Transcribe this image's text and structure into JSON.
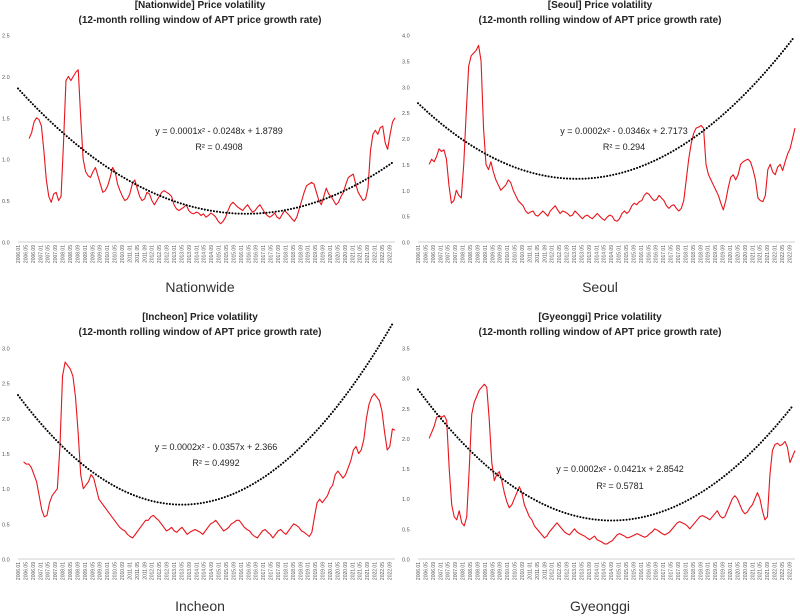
{
  "chart_data": [
    {
      "type": "line",
      "title_line1": "[Nationwide] Price volatility",
      "title_line2": "(12-month rolling window of APT price growth rate)",
      "region_label": "Nationwide",
      "equation": "y = 0.0001x² - 0.0248x + 1.8789",
      "r_squared": "R² = 0.4908",
      "ylim": [
        0,
        2.5
      ],
      "yticks": [
        "0.0",
        "0.5",
        "1.0",
        "1.5",
        "2.0",
        "2.5"
      ],
      "series_color": "#e8141c",
      "trend_color": "#000000",
      "trend": {
        "a": 0.0001,
        "b": -0.0248,
        "c": 1.8789
      },
      "x_tick_labels": [
        "2006.01",
        "2006.05",
        "2006.09",
        "2007.01",
        "2007.05",
        "2007.09",
        "2008.01",
        "2008.05",
        "2008.09",
        "2009.01",
        "2009.05",
        "2009.09",
        "2010.01",
        "2010.05",
        "2010.09",
        "2011.01",
        "2011.05",
        "2011.09",
        "2012.01",
        "2012.05",
        "2012.09",
        "2013.01",
        "2013.05",
        "2013.09",
        "2014.01",
        "2014.05",
        "2014.09",
        "2015.01",
        "2015.05",
        "2015.09",
        "2016.01",
        "2016.05",
        "2016.09",
        "2017.01",
        "2017.05",
        "2017.09",
        "2018.01",
        "2018.05",
        "2018.09",
        "2019.01",
        "2019.05",
        "2019.09",
        "2020.01",
        "2020.05",
        "2020.09",
        "2021.01",
        "2021.05",
        "2021.09",
        "2022.01",
        "2022.05",
        "2022.09"
      ],
      "series": [
        {
          "name": "Price volatility",
          "start_index": 6,
          "values": [
            1.25,
            1.32,
            1.45,
            1.5,
            1.48,
            1.4,
            1.1,
            0.75,
            0.55,
            0.48,
            0.58,
            0.6,
            0.5,
            0.55,
            1.2,
            1.95,
            2.0,
            1.95,
            2.0,
            2.05,
            2.08,
            1.5,
            1.0,
            0.85,
            0.8,
            0.78,
            0.85,
            0.9,
            0.8,
            0.7,
            0.6,
            0.62,
            0.68,
            0.78,
            0.9,
            0.85,
            0.7,
            0.62,
            0.55,
            0.5,
            0.52,
            0.58,
            0.7,
            0.75,
            0.65,
            0.55,
            0.5,
            0.52,
            0.6,
            0.58,
            0.5,
            0.45,
            0.5,
            0.55,
            0.6,
            0.62,
            0.6,
            0.58,
            0.55,
            0.45,
            0.4,
            0.38,
            0.4,
            0.42,
            0.45,
            0.38,
            0.35,
            0.34,
            0.36,
            0.35,
            0.32,
            0.34,
            0.3,
            0.32,
            0.35,
            0.33,
            0.3,
            0.25,
            0.22,
            0.25,
            0.3,
            0.38,
            0.45,
            0.48,
            0.45,
            0.42,
            0.4,
            0.38,
            0.42,
            0.45,
            0.4,
            0.36,
            0.38,
            0.42,
            0.45,
            0.4,
            0.35,
            0.32,
            0.3,
            0.32,
            0.35,
            0.3,
            0.28,
            0.33,
            0.38,
            0.35,
            0.32,
            0.28,
            0.25,
            0.3,
            0.4,
            0.5,
            0.6,
            0.68,
            0.7,
            0.72,
            0.7,
            0.6,
            0.5,
            0.45,
            0.55,
            0.65,
            0.58,
            0.55,
            0.5,
            0.45,
            0.48,
            0.55,
            0.6,
            0.7,
            0.78,
            0.8,
            0.82,
            0.7,
            0.6,
            0.55,
            0.5,
            0.52,
            0.65,
            1.1,
            1.3,
            1.35,
            1.3,
            1.38,
            1.4,
            1.2,
            1.12,
            1.3,
            1.45,
            1.5
          ]
        }
      ]
    },
    {
      "type": "line",
      "title_line1": "[Seoul] Price volatility",
      "title_line2": "(12-month rolling window of APT price growth rate)",
      "region_label": "Seoul",
      "equation": "y = 0.0002x² - 0.0346x + 2.7173",
      "r_squared": "R² = 0.294",
      "ylim": [
        0,
        4.0
      ],
      "yticks": [
        "0.0",
        "0.5",
        "1.0",
        "1.5",
        "2.0",
        "2.5",
        "3.0",
        "3.5",
        "4.0"
      ],
      "series_color": "#e8141c",
      "trend_color": "#000000",
      "trend": {
        "a": 0.0002,
        "b": -0.0346,
        "c": 2.7173
      },
      "x_tick_labels": [
        "2006.01",
        "2006.05",
        "2006.09",
        "2007.01",
        "2007.05",
        "2007.09",
        "2008.01",
        "2008.05",
        "2008.09",
        "2009.01",
        "2009.05",
        "2009.09",
        "2010.01",
        "2010.05",
        "2010.09",
        "2011.01",
        "2011.05",
        "2011.09",
        "2012.01",
        "2012.05",
        "2012.09",
        "2013.01",
        "2013.05",
        "2013.09",
        "2014.01",
        "2014.05",
        "2014.09",
        "2015.01",
        "2015.05",
        "2015.09",
        "2016.01",
        "2016.05",
        "2016.09",
        "2017.01",
        "2017.05",
        "2017.09",
        "2018.01",
        "2018.05",
        "2018.09",
        "2019.01",
        "2019.05",
        "2019.09",
        "2020.01",
        "2020.05",
        "2020.09",
        "2021.01",
        "2021.05",
        "2021.09",
        "2022.01",
        "2022.05",
        "2022.09"
      ],
      "series": [
        {
          "name": "Price volatility",
          "start_index": 6,
          "values": [
            1.5,
            1.6,
            1.55,
            1.65,
            1.8,
            1.75,
            1.78,
            1.6,
            1.1,
            0.75,
            0.8,
            1.0,
            0.9,
            0.85,
            1.5,
            2.5,
            3.4,
            3.6,
            3.65,
            3.7,
            3.8,
            3.5,
            2.2,
            1.5,
            1.4,
            1.55,
            1.35,
            1.2,
            1.1,
            1.0,
            1.05,
            1.1,
            1.2,
            1.15,
            1.0,
            0.9,
            0.8,
            0.75,
            0.7,
            0.6,
            0.55,
            0.58,
            0.6,
            0.52,
            0.5,
            0.55,
            0.6,
            0.55,
            0.5,
            0.6,
            0.65,
            0.7,
            0.62,
            0.55,
            0.6,
            0.58,
            0.55,
            0.5,
            0.52,
            0.6,
            0.55,
            0.5,
            0.45,
            0.5,
            0.52,
            0.48,
            0.45,
            0.5,
            0.55,
            0.5,
            0.45,
            0.42,
            0.48,
            0.52,
            0.5,
            0.42,
            0.4,
            0.45,
            0.55,
            0.6,
            0.55,
            0.6,
            0.7,
            0.75,
            0.72,
            0.78,
            0.8,
            0.9,
            0.95,
            0.92,
            0.85,
            0.8,
            0.82,
            0.9,
            0.85,
            0.8,
            0.7,
            0.65,
            0.7,
            0.72,
            0.65,
            0.6,
            0.65,
            0.8,
            1.2,
            1.6,
            1.9,
            2.1,
            2.2,
            2.22,
            2.25,
            2.2,
            1.5,
            1.3,
            1.2,
            1.1,
            1.0,
            0.9,
            0.75,
            0.62,
            0.8,
            1.05,
            1.25,
            1.3,
            1.2,
            1.3,
            1.5,
            1.55,
            1.58,
            1.6,
            1.55,
            1.4,
            1.2,
            0.85,
            0.8,
            0.78,
            0.9,
            1.4,
            1.5,
            1.35,
            1.3,
            1.45,
            1.5,
            1.38,
            1.55,
            1.7,
            1.8,
            2.0,
            2.2
          ]
        }
      ]
    },
    {
      "type": "line",
      "title_line1": "[Incheon] Price volatility",
      "title_line2": "(12-month rolling window of APT price growth rate)",
      "region_label": "Incheon",
      "equation": "y = 0.0002x² - 0.0357x + 2.366",
      "r_squared": "R² = 0.4992",
      "ylim": [
        0,
        3.0
      ],
      "yticks": [
        "0.0",
        "0.5",
        "1.0",
        "1.5",
        "2.0",
        "2.5",
        "3.0"
      ],
      "series_color": "#e8141c",
      "trend_color": "#000000",
      "trend": {
        "a": 0.0002,
        "b": -0.0357,
        "c": 2.366
      },
      "x_tick_labels": [
        "2006.01",
        "2006.05",
        "2006.09",
        "2007.01",
        "2007.05",
        "2007.09",
        "2008.01",
        "2008.05",
        "2008.09",
        "2009.01",
        "2009.05",
        "2009.09",
        "2010.01",
        "2010.05",
        "2010.09",
        "2011.01",
        "2011.05",
        "2011.09",
        "2012.01",
        "2012.05",
        "2012.09",
        "2013.01",
        "2013.05",
        "2013.09",
        "2014.01",
        "2014.05",
        "2014.09",
        "2015.01",
        "2015.05",
        "2015.09",
        "2016.01",
        "2016.05",
        "2016.09",
        "2017.01",
        "2017.05",
        "2017.09",
        "2018.01",
        "2018.05",
        "2018.09",
        "2019.01",
        "2019.05",
        "2019.09",
        "2020.01",
        "2020.05",
        "2020.09",
        "2021.01",
        "2021.05",
        "2021.09",
        "2022.01",
        "2022.05",
        "2022.09"
      ],
      "series": [
        {
          "name": "Price volatility",
          "start_index": 3,
          "values": [
            1.38,
            1.35,
            1.35,
            1.3,
            1.2,
            1.1,
            0.9,
            0.7,
            0.6,
            0.62,
            0.8,
            0.9,
            0.95,
            1.0,
            1.6,
            2.6,
            2.8,
            2.75,
            2.7,
            2.6,
            2.3,
            1.8,
            1.2,
            1.0,
            1.05,
            1.1,
            1.2,
            1.15,
            1.0,
            0.85,
            0.8,
            0.75,
            0.7,
            0.65,
            0.6,
            0.55,
            0.5,
            0.45,
            0.42,
            0.4,
            0.35,
            0.32,
            0.3,
            0.35,
            0.4,
            0.45,
            0.5,
            0.55,
            0.55,
            0.6,
            0.62,
            0.58,
            0.55,
            0.5,
            0.45,
            0.4,
            0.42,
            0.45,
            0.4,
            0.38,
            0.42,
            0.45,
            0.4,
            0.35,
            0.38,
            0.4,
            0.42,
            0.4,
            0.38,
            0.35,
            0.4,
            0.45,
            0.5,
            0.52,
            0.55,
            0.5,
            0.45,
            0.4,
            0.42,
            0.45,
            0.5,
            0.52,
            0.55,
            0.55,
            0.5,
            0.45,
            0.42,
            0.4,
            0.35,
            0.32,
            0.3,
            0.35,
            0.4,
            0.42,
            0.38,
            0.35,
            0.3,
            0.35,
            0.4,
            0.42,
            0.38,
            0.35,
            0.4,
            0.45,
            0.5,
            0.48,
            0.45,
            0.4,
            0.38,
            0.35,
            0.32,
            0.38,
            0.6,
            0.8,
            0.85,
            0.8,
            0.85,
            0.9,
            1.0,
            1.05,
            1.2,
            1.25,
            1.2,
            1.15,
            1.2,
            1.3,
            1.4,
            1.55,
            1.6,
            1.5,
            1.55,
            1.7,
            2.0,
            2.2,
            2.3,
            2.35,
            2.3,
            2.25,
            2.1,
            1.8,
            1.55,
            1.6,
            1.85,
            1.83
          ]
        }
      ]
    },
    {
      "type": "line",
      "title_line1": "[Gyeonggi] Price volatility",
      "title_line2": "(12-month rolling window of APT price growth rate)",
      "region_label": "Gyeonggi",
      "equation": "y = 0.0002x² - 0.0421x + 2.8542",
      "r_squared": "R² = 0.5781",
      "ylim": [
        0,
        3.5
      ],
      "yticks": [
        "0.0",
        "0.5",
        "1.0",
        "1.5",
        "2.0",
        "2.5",
        "3.0",
        "3.5"
      ],
      "series_color": "#e8141c",
      "trend_color": "#000000",
      "trend": {
        "a": 0.0002,
        "b": -0.0421,
        "c": 2.8542
      },
      "x_tick_labels": [
        "2006.01",
        "2006.05",
        "2006.09",
        "2007.01",
        "2007.05",
        "2007.09",
        "2008.01",
        "2008.05",
        "2008.09",
        "2009.01",
        "2009.05",
        "2009.09",
        "2010.01",
        "2010.05",
        "2010.09",
        "2011.01",
        "2011.05",
        "2011.09",
        "2012.01",
        "2012.05",
        "2012.09",
        "2013.01",
        "2013.05",
        "2013.09",
        "2014.01",
        "2014.05",
        "2014.09",
        "2015.01",
        "2015.05",
        "2015.09",
        "2016.01",
        "2016.05",
        "2016.09",
        "2017.01",
        "2017.05",
        "2017.09",
        "2018.01",
        "2018.05",
        "2018.09",
        "2019.01",
        "2019.05",
        "2019.09",
        "2020.01",
        "2020.05",
        "2020.09",
        "2021.01",
        "2021.05",
        "2021.09",
        "2022.01",
        "2022.05",
        "2022.09"
      ],
      "series": [
        {
          "name": "Price volatility",
          "start_index": 6,
          "values": [
            2.0,
            2.1,
            2.2,
            2.35,
            2.38,
            2.35,
            2.38,
            2.3,
            1.5,
            0.9,
            0.7,
            0.65,
            0.8,
            0.6,
            0.55,
            0.7,
            1.5,
            2.4,
            2.6,
            2.7,
            2.8,
            2.85,
            2.9,
            2.85,
            2.3,
            1.6,
            1.3,
            1.4,
            1.45,
            1.3,
            1.1,
            0.95,
            0.85,
            0.9,
            1.0,
            1.1,
            1.2,
            1.1,
            0.9,
            0.8,
            0.7,
            0.65,
            0.55,
            0.5,
            0.45,
            0.4,
            0.35,
            0.38,
            0.45,
            0.5,
            0.55,
            0.6,
            0.55,
            0.5,
            0.45,
            0.42,
            0.4,
            0.45,
            0.5,
            0.45,
            0.42,
            0.4,
            0.38,
            0.35,
            0.32,
            0.35,
            0.38,
            0.32,
            0.3,
            0.28,
            0.25,
            0.25,
            0.28,
            0.3,
            0.35,
            0.4,
            0.42,
            0.4,
            0.38,
            0.35,
            0.36,
            0.38,
            0.4,
            0.42,
            0.4,
            0.38,
            0.36,
            0.38,
            0.42,
            0.45,
            0.5,
            0.48,
            0.45,
            0.42,
            0.4,
            0.42,
            0.45,
            0.5,
            0.55,
            0.6,
            0.62,
            0.6,
            0.58,
            0.55,
            0.5,
            0.55,
            0.6,
            0.65,
            0.7,
            0.72,
            0.7,
            0.68,
            0.65,
            0.7,
            0.75,
            0.8,
            0.72,
            0.68,
            0.7,
            0.8,
            0.9,
            1.0,
            1.05,
            1.0,
            0.9,
            0.8,
            0.75,
            0.78,
            0.85,
            0.9,
            1.0,
            1.1,
            1.0,
            0.8,
            0.65,
            0.7,
            1.4,
            1.8,
            1.9,
            1.92,
            1.88,
            1.9,
            1.95,
            1.85,
            1.6,
            1.7,
            1.8
          ]
        }
      ]
    }
  ]
}
